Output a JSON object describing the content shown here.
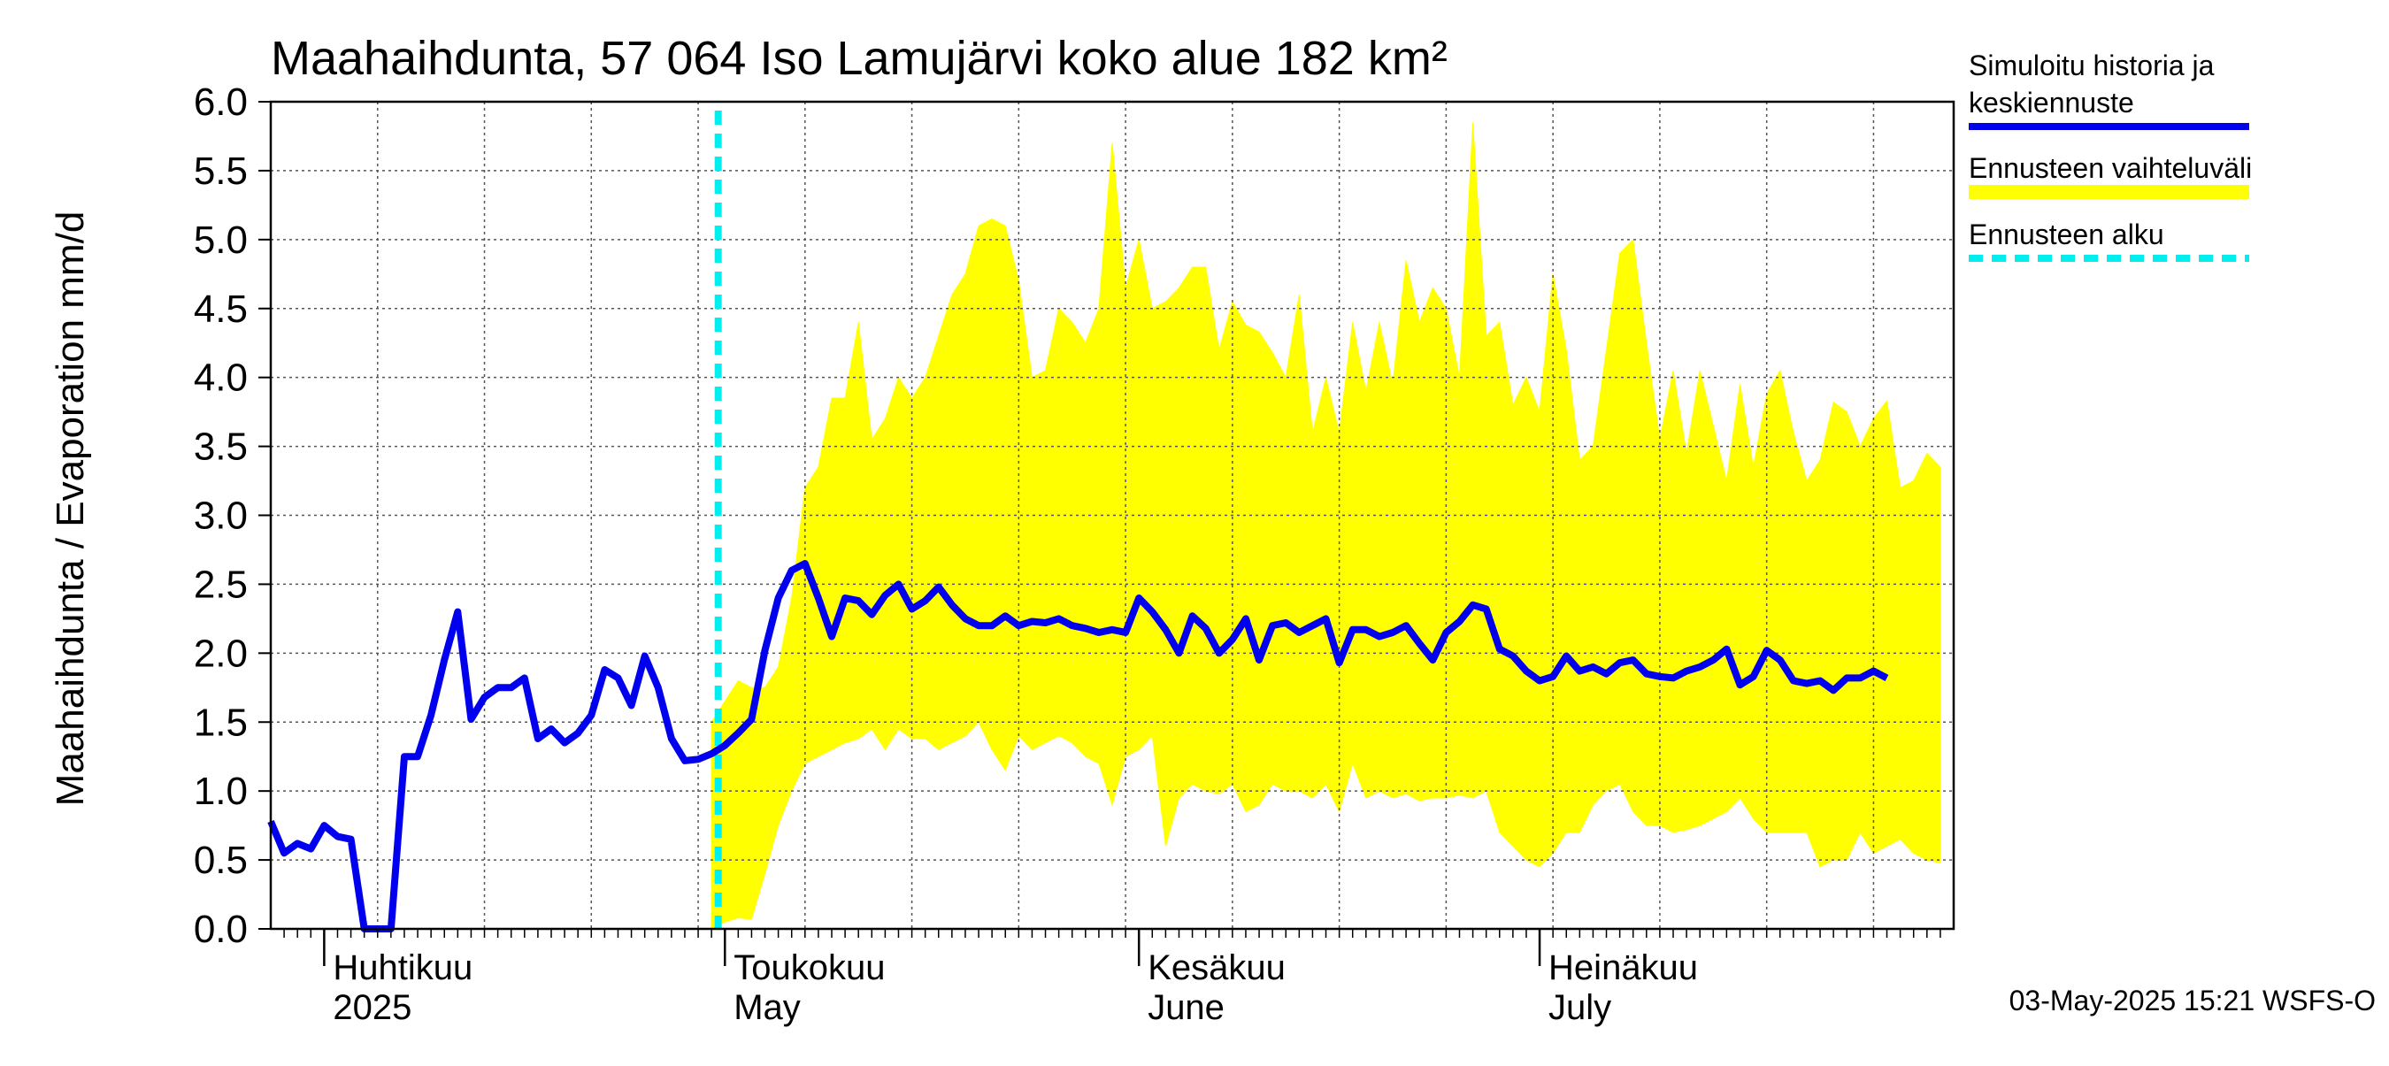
{
  "chart_data": {
    "type": "area",
    "title": "Maahaihdunta, 57 064 Iso Lamujärvi koko alue 182 km²",
    "ylabel": "Maahaihdunta / Evaporation   mm/d",
    "ylim": [
      0,
      6
    ],
    "yticks": [
      "0.0",
      "0.5",
      "1.0",
      "1.5",
      "2.0",
      "2.5",
      "3.0",
      "3.5",
      "4.0",
      "4.5",
      "5.0",
      "5.5",
      "6.0"
    ],
    "grid": true,
    "legend_position": "right",
    "x_start": "2025-03-28",
    "x_end": "2025-08-01",
    "month_labels": [
      {
        "date": "2025-04-01",
        "line1": "Huhtikuu",
        "line2": "2025"
      },
      {
        "date": "2025-05-01",
        "line1": "Toukokuu",
        "line2": "May"
      },
      {
        "date": "2025-06-01",
        "line1": "Kesäkuu",
        "line2": "June"
      },
      {
        "date": "2025-07-01",
        "line1": "Heinäkuu",
        "line2": "July"
      }
    ],
    "forecast_start": "2025-04-30",
    "series": [
      {
        "name": "Simuloitu historia ja keskiennuste",
        "color": "#0000ee",
        "start": "2025-03-28",
        "values": [
          0.78,
          0.55,
          0.62,
          0.58,
          0.75,
          0.67,
          0.65,
          0.0,
          0.0,
          0.0,
          1.25,
          1.25,
          1.55,
          1.95,
          2.3,
          1.52,
          1.68,
          1.75,
          1.75,
          1.82,
          1.38,
          1.45,
          1.35,
          1.42,
          1.55,
          1.88,
          1.82,
          1.62,
          1.98,
          1.75,
          1.38,
          1.22,
          1.23,
          1.27,
          1.33,
          1.42,
          1.52,
          2.02,
          2.4,
          2.6,
          2.65,
          2.4,
          2.12,
          2.4,
          2.38,
          2.28,
          2.42,
          2.5,
          2.32,
          2.38,
          2.48,
          2.35,
          2.25,
          2.2,
          2.2,
          2.27,
          2.2,
          2.23,
          2.22,
          2.25,
          2.2,
          2.18,
          2.15,
          2.17,
          2.15,
          2.4,
          2.3,
          2.17,
          2.0,
          2.27,
          2.18,
          2.0,
          2.1,
          2.25,
          1.95,
          2.2,
          2.22,
          2.15,
          2.2,
          2.25,
          1.93,
          2.17,
          2.17,
          2.12,
          2.15,
          2.2,
          2.07,
          1.95,
          2.15,
          2.23,
          2.35,
          2.32,
          2.03,
          1.98,
          1.87,
          1.8,
          1.83,
          1.98,
          1.87,
          1.9,
          1.85,
          1.93,
          1.95,
          1.85,
          1.83,
          1.82,
          1.87,
          1.9,
          1.95,
          2.03,
          1.77,
          1.83,
          2.02,
          1.95,
          1.8,
          1.78,
          1.8,
          1.73,
          1.82,
          1.82,
          1.87,
          1.82
        ]
      },
      {
        "name": "Ennusteen vaihteluväli",
        "color": "#ffff00",
        "start": "2025-04-30",
        "upper": [
          1.5,
          1.65,
          1.8,
          1.75,
          1.75,
          1.9,
          2.4,
          3.2,
          3.35,
          3.85,
          3.85,
          4.4,
          3.55,
          3.7,
          4.0,
          3.85,
          4.0,
          4.3,
          4.6,
          4.75,
          5.1,
          5.15,
          5.1,
          4.7,
          4.0,
          4.05,
          4.5,
          4.4,
          4.25,
          4.5,
          5.7,
          4.65,
          5.0,
          4.5,
          4.55,
          4.65,
          4.8,
          4.8,
          4.2,
          4.55,
          4.38,
          4.33,
          4.18,
          4.0,
          4.6,
          3.6,
          4.0,
          3.6,
          4.4,
          3.9,
          4.4,
          3.95,
          4.85,
          4.4,
          4.65,
          4.5,
          4.0,
          5.85,
          4.3,
          4.4,
          3.8,
          4.0,
          3.75,
          4.75,
          4.2,
          3.4,
          3.5,
          4.2,
          4.9,
          5.0,
          4.25,
          3.55,
          4.05,
          3.45,
          4.05,
          3.65,
          3.25,
          3.95,
          3.35,
          3.88,
          4.05,
          3.6,
          3.25,
          3.4,
          3.82,
          3.75,
          3.5,
          3.7,
          3.83,
          3.2,
          3.25,
          3.45,
          3.35
        ],
        "lower": [
          0.0,
          0.05,
          0.08,
          0.07,
          0.4,
          0.75,
          1.0,
          1.2,
          1.25,
          1.3,
          1.35,
          1.38,
          1.45,
          1.3,
          1.45,
          1.38,
          1.38,
          1.3,
          1.35,
          1.4,
          1.5,
          1.3,
          1.15,
          1.4,
          1.3,
          1.35,
          1.4,
          1.35,
          1.25,
          1.2,
          0.9,
          1.25,
          1.3,
          1.4,
          0.6,
          0.95,
          1.05,
          1.0,
          0.98,
          1.05,
          0.85,
          0.9,
          1.05,
          1.0,
          1.0,
          0.95,
          1.05,
          0.85,
          1.2,
          0.95,
          1.0,
          0.95,
          0.98,
          0.93,
          0.95,
          0.95,
          0.97,
          0.95,
          1.0,
          0.7,
          0.6,
          0.5,
          0.45,
          0.55,
          0.7,
          0.7,
          0.9,
          1.0,
          1.05,
          0.85,
          0.75,
          0.75,
          0.7,
          0.72,
          0.75,
          0.8,
          0.85,
          0.95,
          0.8,
          0.7,
          0.7,
          0.7,
          0.7,
          0.45,
          0.5,
          0.5,
          0.7,
          0.55,
          0.6,
          0.65,
          0.55,
          0.5,
          0.48
        ]
      },
      {
        "name": "Ennusteen alku",
        "color": "#00eeee"
      }
    ],
    "timestamp": "03-May-2025 15:21 WSFS-O"
  }
}
